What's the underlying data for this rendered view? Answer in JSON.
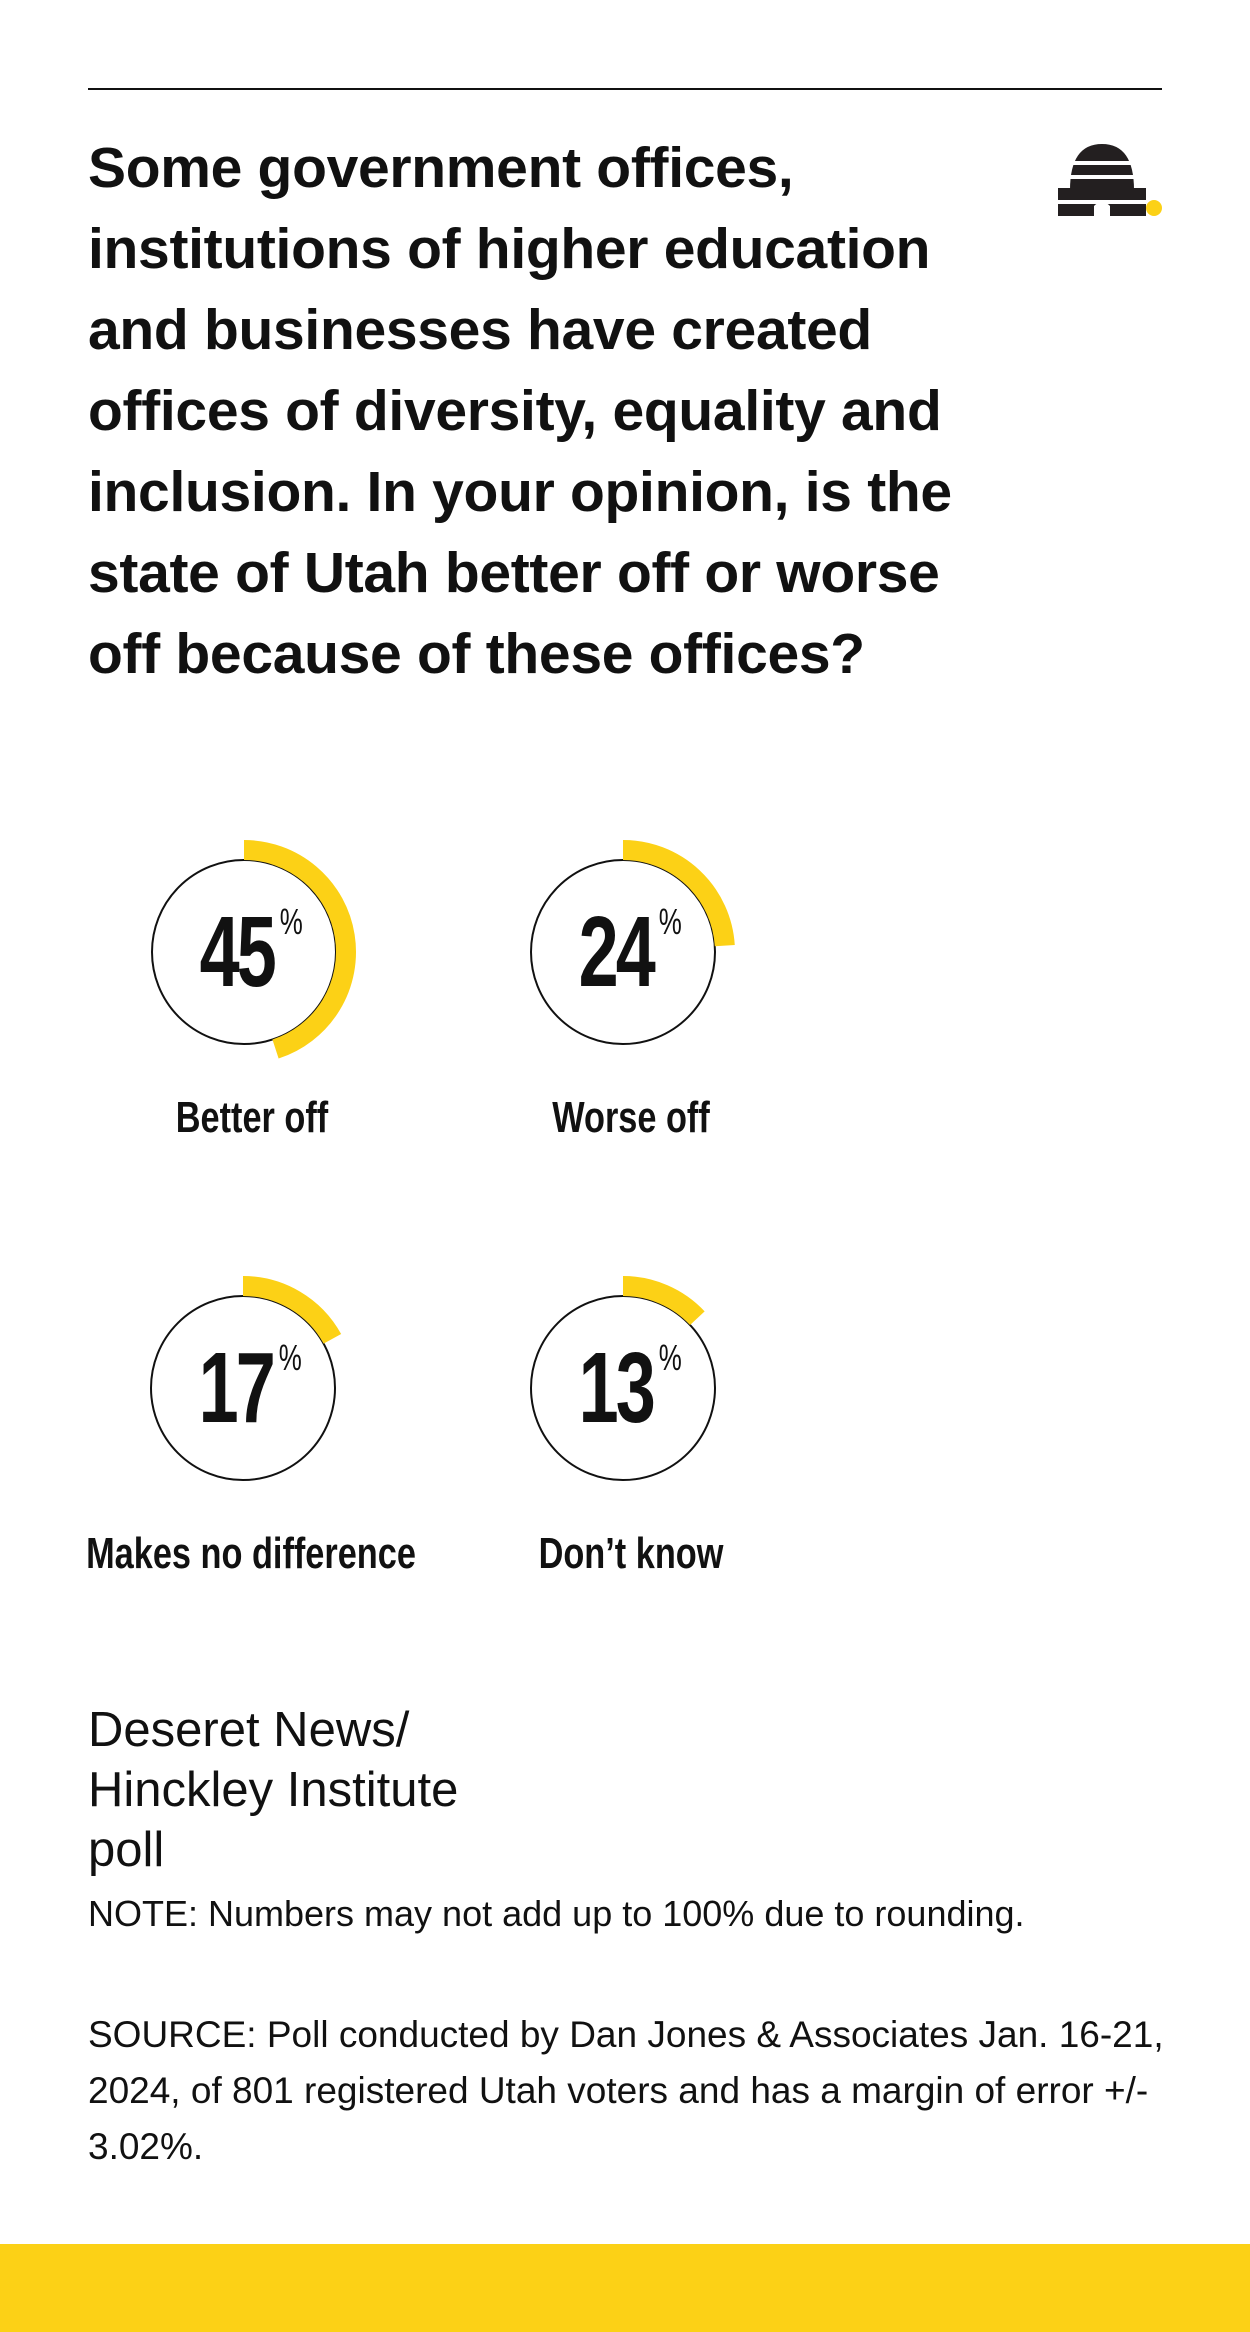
{
  "chart_data": {
    "type": "gauge",
    "title": "Some government offices, institutions of higher education and businesses have created offices of diversity, equality and inclusion. In your opinion, is the state of Utah better off or worse off because of these offices?",
    "categories": [
      "Better off",
      "Worse off",
      "Makes no difference",
      "Don’t know"
    ],
    "values": [
      45,
      24,
      17,
      13
    ],
    "unit": "%",
    "ylim": [
      0,
      100
    ],
    "color": "#fcd116",
    "credit": "Deseret News/ Hinckley Institute poll",
    "note": "NOTE: Numbers may not add up to 100% due to rounding.",
    "source": "SOURCE: Poll conducted by Dan Jones & Associates Jan. 16-21, 2024, of 801 registered Utah voters and has a margin of error +/- 3.02%."
  }
}
